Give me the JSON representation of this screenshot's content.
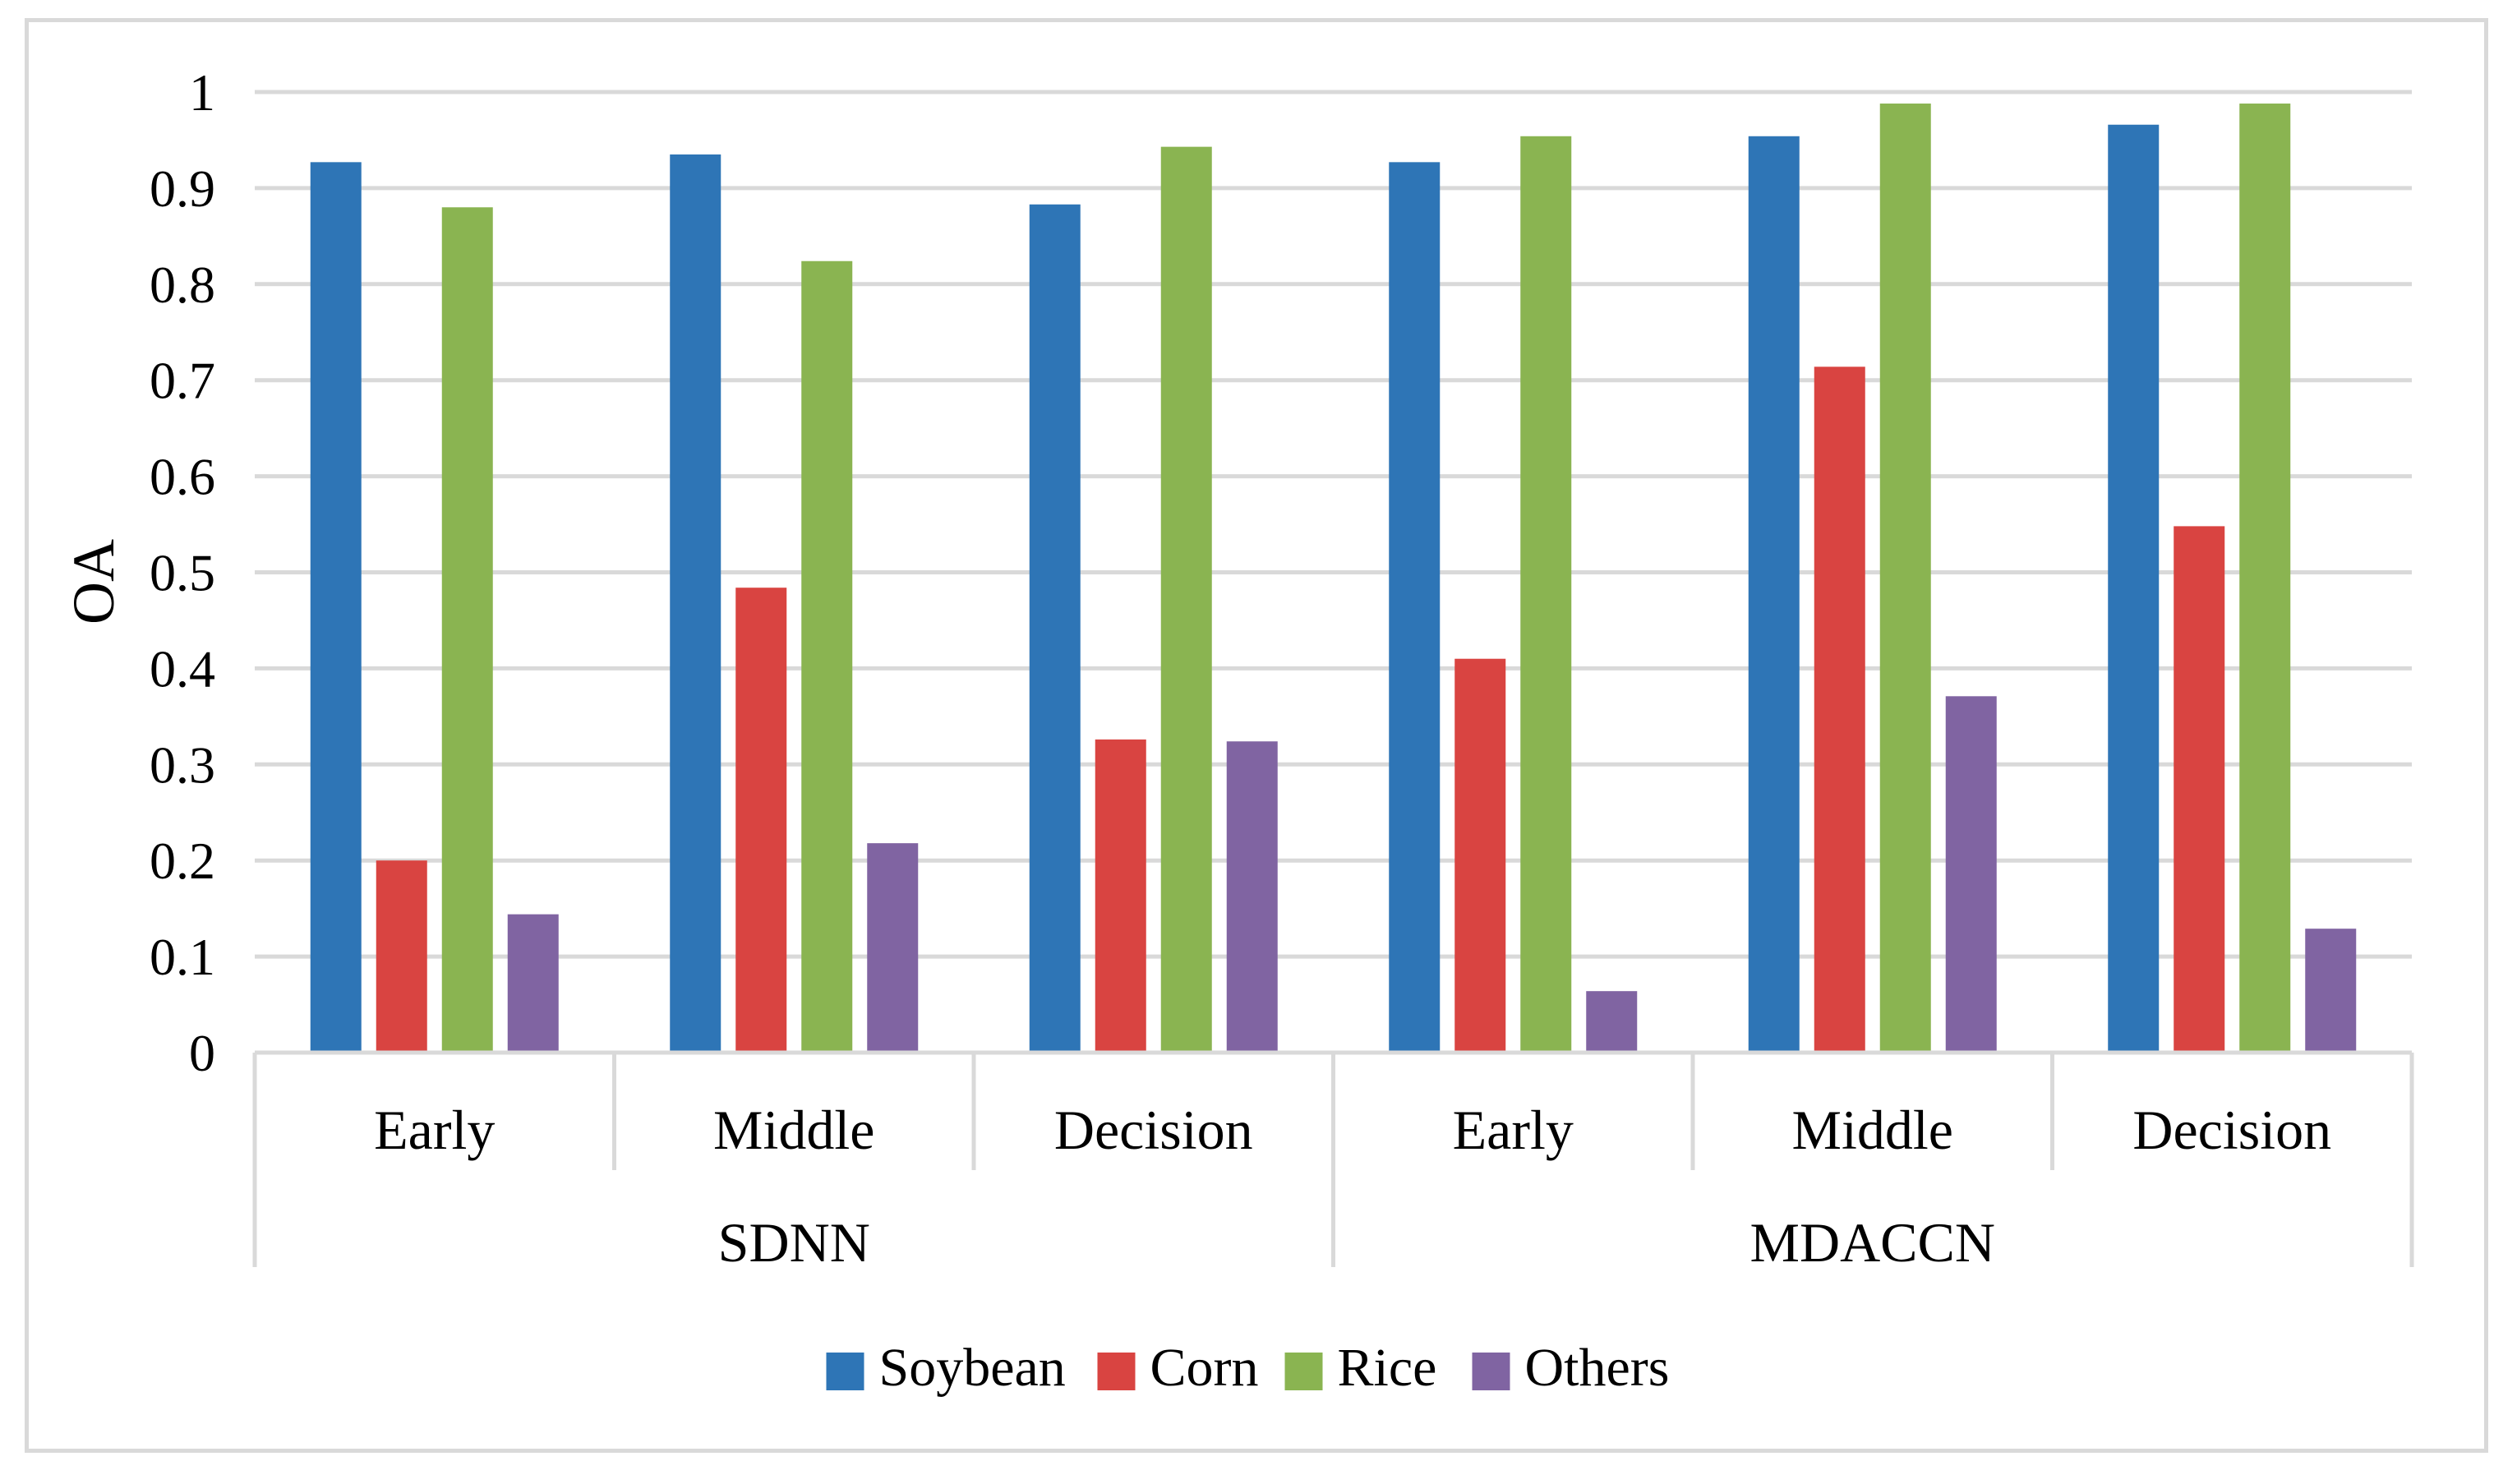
{
  "chart_data": {
    "type": "bar",
    "title": "",
    "ylabel": "OA",
    "xlabel": "",
    "ylim": [
      0,
      1
    ],
    "yticks": [
      "0",
      "0.1",
      "0.2",
      "0.3",
      "0.4",
      "0.5",
      "0.6",
      "0.7",
      "0.8",
      "0.9",
      "1"
    ],
    "groups": [
      {
        "label": "SDNN",
        "categories": [
          "Early",
          "Middle",
          "Decision"
        ]
      },
      {
        "label": "MDACCN",
        "categories": [
          "Early",
          "Middle",
          "Decision"
        ]
      }
    ],
    "categories": [
      "Early",
      "Middle",
      "Decision",
      "Early",
      "Middle",
      "Decision"
    ],
    "series": [
      {
        "name": "Soybean",
        "color": "#2E75B6",
        "values": [
          0.927,
          0.935,
          0.883,
          0.927,
          0.954,
          0.966
        ]
      },
      {
        "name": "Corn",
        "color": "#D94441",
        "values": [
          0.2,
          0.484,
          0.326,
          0.41,
          0.714,
          0.548
        ]
      },
      {
        "name": "Rice",
        "color": "#8AB451",
        "values": [
          0.88,
          0.824,
          0.943,
          0.954,
          0.988,
          0.988
        ]
      },
      {
        "name": "Others",
        "color": "#8064A2",
        "values": [
          0.144,
          0.218,
          0.324,
          0.064,
          0.371,
          0.129
        ]
      }
    ],
    "grid": true,
    "legend_position": "bottom"
  }
}
